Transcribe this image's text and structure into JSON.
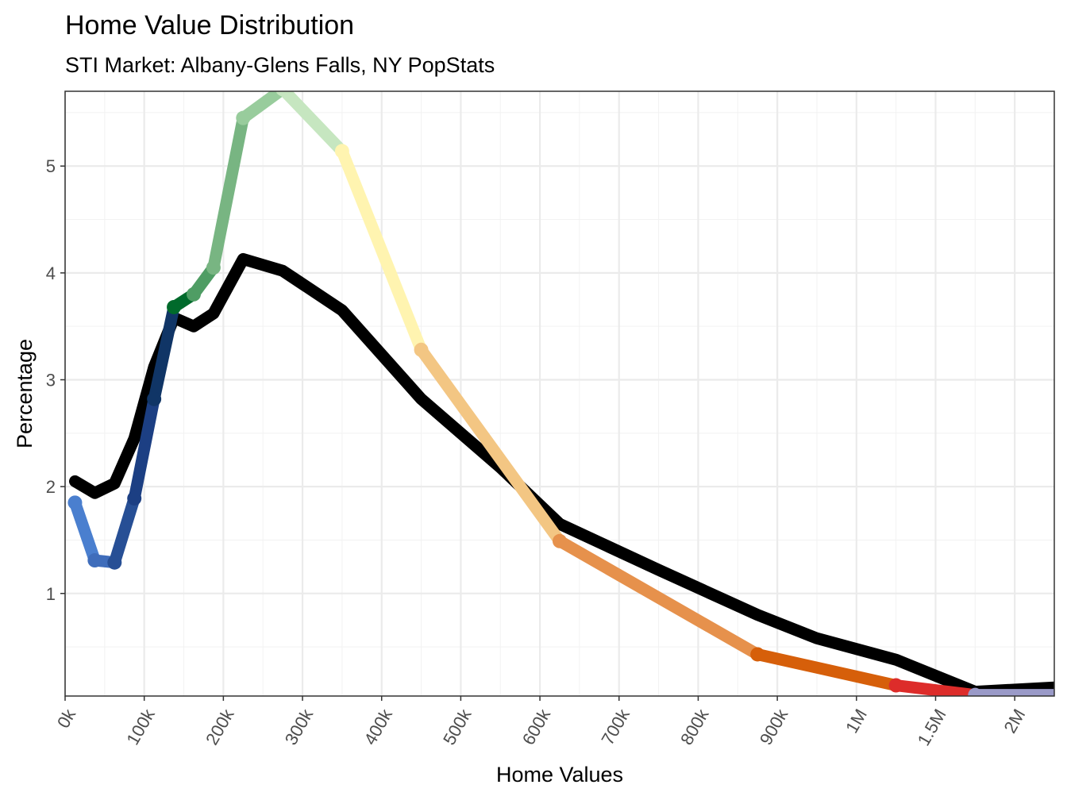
{
  "chart_data": {
    "type": "line",
    "title": "Home Value Distribution",
    "subtitle": "STI Market: Albany-Glens Falls, NY PopStats",
    "xlabel": "Home Values",
    "ylabel": "Percentage",
    "ylim": [
      0.04,
      5.7
    ],
    "yticks": [
      1,
      2,
      3,
      4,
      5
    ],
    "x_categories": [
      "0k",
      "100k",
      "200k",
      "300k",
      "400k",
      "500k",
      "600k",
      "700k",
      "800k",
      "900k",
      "1M",
      "1.5M",
      "2M"
    ],
    "x_range": [
      0,
      12.5
    ],
    "grid": true,
    "legend": "none",
    "series": [
      {
        "role": "comparison",
        "color": "#000000",
        "x": [
          0.125,
          0.375,
          0.625,
          0.875,
          1.125,
          1.375,
          1.625,
          1.875,
          2.25,
          2.75,
          3.5,
          4.5,
          5.5,
          6.25,
          7.5,
          8.75,
          9.5,
          10.5,
          11.5,
          12.5
        ],
        "y": [
          2.05,
          1.94,
          2.03,
          2.45,
          3.12,
          3.58,
          3.5,
          3.62,
          4.13,
          4.02,
          3.65,
          2.82,
          2.18,
          1.65,
          1.22,
          0.8,
          0.58,
          0.38,
          0.08,
          0.12
        ]
      },
      {
        "role": "market",
        "x": [
          0.125,
          0.375,
          0.625,
          0.875,
          1.125,
          1.375,
          1.625,
          1.875,
          2.25,
          2.75,
          3.5,
          4.5,
          6.25,
          8.75,
          10.5,
          11.5,
          12.5
        ],
        "y": [
          1.85,
          1.31,
          1.29,
          1.89,
          2.82,
          3.68,
          3.8,
          4.05,
          5.45,
          5.72,
          5.14,
          3.28,
          1.49,
          0.43,
          0.14,
          0.05,
          0.05
        ],
        "segment_colors": [
          "#4a7fcf",
          "#3f6dbb",
          "#274f95",
          "#1c3f83",
          "#103566",
          "#006a2b",
          "#4f9d64",
          "#78b582",
          "#98cc9c",
          "#c6e6c0",
          "#fff4b0",
          "#f3c683",
          "#e6914c",
          "#d65f0a",
          "#dd2c2a",
          "#9a9ac8",
          "#6b4fa0"
        ]
      }
    ]
  }
}
